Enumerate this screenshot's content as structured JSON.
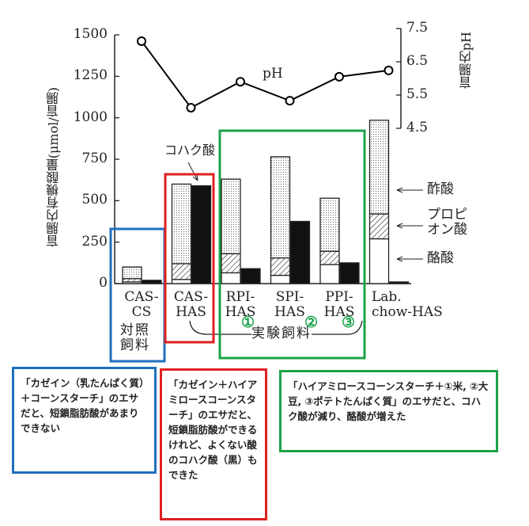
{
  "chart_data": {
    "type": "bar",
    "stacked": true,
    "ylabel": "盲腸内有機酸量(μmol/盲腸)",
    "y2label": "盲腸内pH",
    "categories": [
      "CAS-\nCS",
      "CAS-\nHAS",
      "RPI-\nHAS",
      "SPI-\nHAS",
      "PPI-\nHAS",
      "Lab.\nchow-HAS"
    ],
    "series": [
      {
        "name": "酪酸",
        "color": "#ffffff",
        "pattern": "solid",
        "stack": "left",
        "values": [
          10,
          25,
          65,
          50,
          115,
          270
        ]
      },
      {
        "name": "プロピ\nオン酸",
        "color": "#000000",
        "pattern": "hatch",
        "stack": "left",
        "values": [
          20,
          95,
          115,
          105,
          80,
          150
        ]
      },
      {
        "name": "酢酸",
        "color": "#000000",
        "pattern": "dots",
        "stack": "left",
        "values": [
          70,
          480,
          450,
          610,
          320,
          565
        ]
      },
      {
        "name": "コハク酸",
        "color": "#111111",
        "pattern": "solid",
        "stack": "right",
        "values": [
          20,
          590,
          90,
          375,
          125,
          10
        ]
      },
      {
        "name": "pH",
        "type": "line",
        "axis": "y2",
        "color": "#000000",
        "values": [
          7.12,
          5.12,
          5.9,
          5.33,
          6.05,
          6.24
        ]
      }
    ],
    "ylim": [
      0,
      1500
    ],
    "yticks": [
      0,
      250,
      500,
      750,
      1000,
      1250,
      1500
    ],
    "y2lim": [
      4.5,
      7.5
    ],
    "y2ticks": [
      4.5,
      5.5,
      6.5,
      7.5
    ],
    "control_label": "対照\n飼料",
    "experiment_label": "実験飼料",
    "markers": [
      "①",
      "②",
      "③"
    ]
  },
  "notes": [
    {
      "text": "「カゼイン（乳たんぱく質）＋コーンスターチ」のエサだと、短鎖脂肪酸があまりできない",
      "color": "#1f6fbf"
    },
    {
      "text": "「カゼイン＋ハイアミロースコーンスターチ」のエサだと、短鎖脂肪酸ができるけれど、よくない酸のコハク酸（黒）もできた",
      "color": "#e02020"
    },
    {
      "text": "「ハイアミロースコーンスターチ＋①米, ②大豆, ③ポテトたんぱく質」のエサだと、コハク酸が減り、酪酸が増えた",
      "color": "#1aa34a"
    }
  ]
}
